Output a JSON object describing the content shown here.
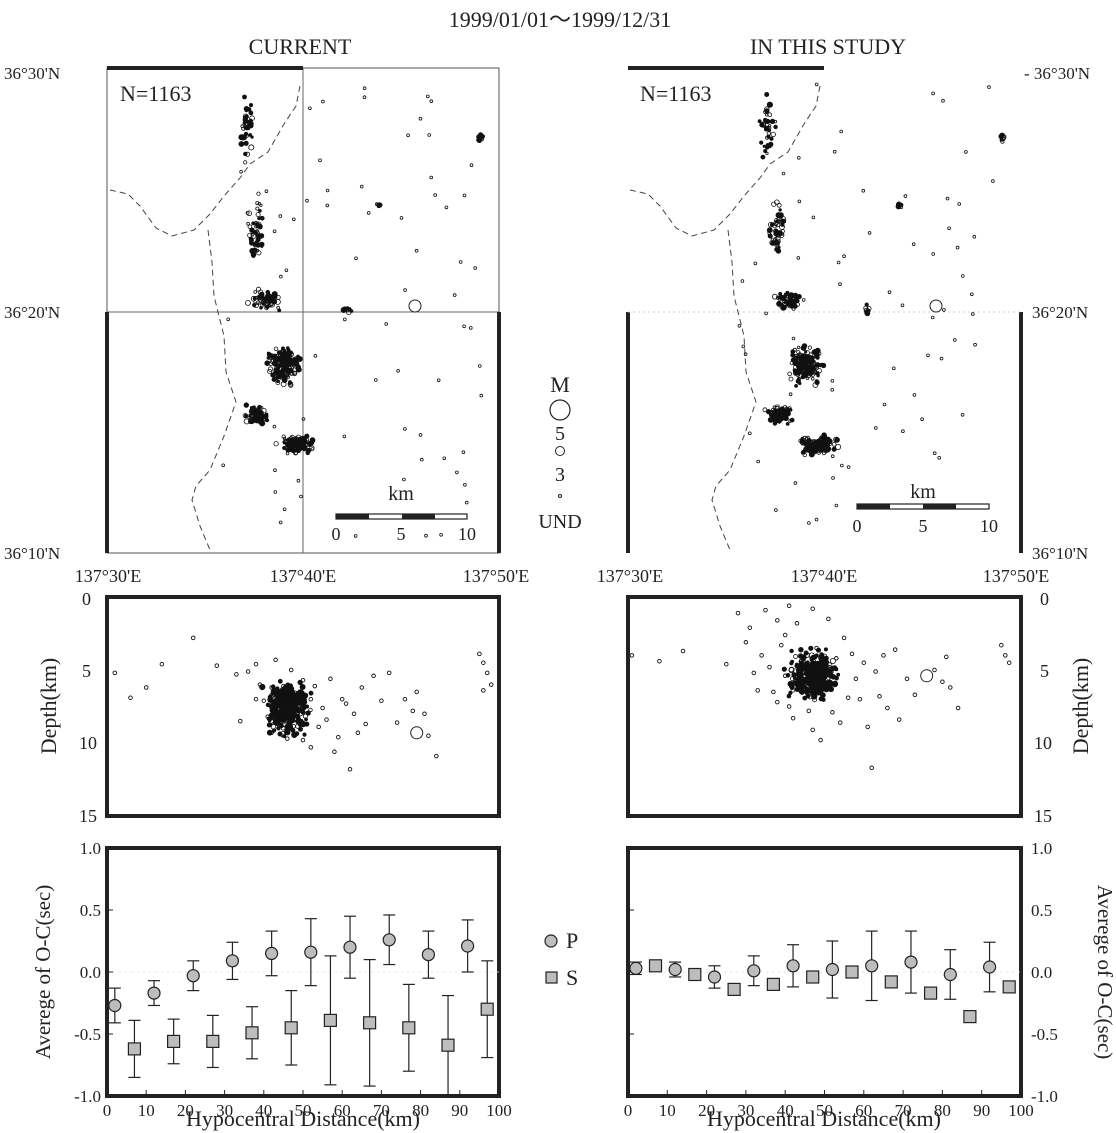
{
  "header": {
    "date_range": "1999/01/01～1999/12/31",
    "left_title": "CURRENT",
    "right_title": "IN THIS STUDY"
  },
  "colors": {
    "ink": "#222222",
    "point": "#111111",
    "marker_fill": "#bdbdbd"
  },
  "map": {
    "count_label_left": "N=1163",
    "count_label_right": "N=1163",
    "lat_labels": [
      "36°30'N",
      "36°20'N",
      "36°10'N"
    ],
    "right_lat_labels": [
      "- 36°30'N",
      "36°20'N",
      "36°10'N"
    ],
    "lon_labels": [
      "137°30'E",
      "137°40'E",
      "137°50'E"
    ],
    "scale_title": "km",
    "scale_ticks": [
      "0",
      "5",
      "10"
    ]
  },
  "magnitude_legend": {
    "title": "M",
    "labels": [
      "5",
      "3",
      "UND"
    ]
  },
  "depth": {
    "ylabel": "Depth(km)",
    "ticks": [
      "0",
      "5",
      "10",
      "15"
    ]
  },
  "oc": {
    "ylabel": "Averege of O-C(sec)",
    "xlabel": "Hypocentral Distance(km)",
    "y_ticks": [
      "1.0",
      "0.5",
      "0.0",
      "-0.5",
      "-1.0"
    ],
    "x_ticks": [
      "0",
      "10",
      "20",
      "30",
      "40",
      "50",
      "60",
      "70",
      "80",
      "90",
      "100"
    ],
    "legend_p": "P",
    "legend_s": "S"
  },
  "chart_data": [
    {
      "type": "scatter",
      "panel": "current-depth-section",
      "xlim": [
        0,
        100
      ],
      "ylim": [
        15,
        0
      ],
      "points": [
        [
          2,
          5.2
        ],
        [
          6,
          6.9
        ],
        [
          10,
          6.2
        ],
        [
          14,
          4.6
        ],
        [
          22,
          2.8
        ],
        [
          28,
          4.7
        ],
        [
          33,
          5.3
        ],
        [
          34,
          8.5
        ],
        [
          36,
          5.1
        ],
        [
          38,
          7.0
        ],
        [
          38,
          4.6
        ],
        [
          39,
          6.0
        ],
        [
          40,
          7.1
        ],
        [
          41,
          8.2
        ],
        [
          42,
          9.3
        ],
        [
          42,
          6.2
        ],
        [
          43,
          4.3
        ],
        [
          44,
          8.1
        ],
        [
          45,
          7.5
        ],
        [
          45,
          6.1
        ],
        [
          46,
          9.7
        ],
        [
          47,
          5.0
        ],
        [
          48,
          7.1
        ],
        [
          49,
          8.4
        ],
        [
          50,
          5.7
        ],
        [
          50,
          9.8
        ],
        [
          52,
          7.0
        ],
        [
          52,
          10.3
        ],
        [
          53,
          6.1
        ],
        [
          54,
          8.9
        ],
        [
          55,
          7.6
        ],
        [
          56,
          8.4
        ],
        [
          57,
          5.6
        ],
        [
          58,
          10.6
        ],
        [
          59,
          9.6
        ],
        [
          60,
          7.0
        ],
        [
          61,
          7.3
        ],
        [
          62,
          11.8
        ],
        [
          63,
          8.0
        ],
        [
          64,
          9.3
        ],
        [
          65,
          6.2
        ],
        [
          66,
          8.7
        ],
        [
          68,
          5.4
        ],
        [
          70,
          7.1
        ],
        [
          72,
          5.2
        ],
        [
          74,
          8.6
        ],
        [
          76,
          7.0
        ],
        [
          78,
          7.8
        ],
        [
          79,
          6.5
        ],
        [
          81,
          8.0
        ],
        [
          82,
          9.5
        ],
        [
          84,
          10.9
        ],
        [
          95,
          3.9
        ],
        [
          96,
          4.5
        ],
        [
          97,
          5.2
        ],
        [
          98,
          6.0
        ],
        [
          96,
          6.4
        ]
      ],
      "cluster": {
        "center": [
          46,
          7.6
        ],
        "radius": [
          7,
          2.3
        ]
      },
      "large_event": [
        79,
        9.3
      ]
    },
    {
      "type": "scatter",
      "panel": "study-depth-section",
      "xlim": [
        0,
        100
      ],
      "ylim": [
        15,
        0
      ],
      "points": [
        [
          1,
          4.0
        ],
        [
          8,
          4.4
        ],
        [
          14,
          3.7
        ],
        [
          25,
          4.6
        ],
        [
          28,
          1.1
        ],
        [
          30,
          3.1
        ],
        [
          31,
          2.1
        ],
        [
          32,
          5.2
        ],
        [
          33,
          6.4
        ],
        [
          34,
          4.0
        ],
        [
          35,
          0.9
        ],
        [
          36,
          4.8
        ],
        [
          37,
          6.5
        ],
        [
          38,
          1.6
        ],
        [
          38,
          7.2
        ],
        [
          39,
          3.3
        ],
        [
          40,
          2.6
        ],
        [
          40,
          5.4
        ],
        [
          41,
          0.6
        ],
        [
          41,
          7.5
        ],
        [
          42,
          8.3
        ],
        [
          43,
          1.8
        ],
        [
          44,
          4.4
        ],
        [
          45,
          6.3
        ],
        [
          46,
          7.8
        ],
        [
          47,
          0.8
        ],
        [
          47,
          9.1
        ],
        [
          48,
          3.5
        ],
        [
          49,
          9.8
        ],
        [
          50,
          5.1
        ],
        [
          51,
          1.5
        ],
        [
          52,
          7.9
        ],
        [
          53,
          4.2
        ],
        [
          54,
          8.6
        ],
        [
          55,
          2.8
        ],
        [
          56,
          6.9
        ],
        [
          57,
          3.9
        ],
        [
          58,
          5.6
        ],
        [
          59,
          7.0
        ],
        [
          60,
          4.5
        ],
        [
          61,
          8.9
        ],
        [
          62,
          11.7
        ],
        [
          63,
          5.1
        ],
        [
          64,
          6.8
        ],
        [
          65,
          4.0
        ],
        [
          66,
          7.6
        ],
        [
          68,
          3.6
        ],
        [
          69,
          8.4
        ],
        [
          71,
          5.6
        ],
        [
          73,
          6.7
        ],
        [
          78,
          5.0
        ],
        [
          80,
          5.8
        ],
        [
          81,
          4.1
        ],
        [
          82,
          6.2
        ],
        [
          84,
          7.6
        ],
        [
          95,
          3.3
        ],
        [
          96,
          4.0
        ],
        [
          97,
          4.5
        ]
      ],
      "cluster": {
        "center": [
          47,
          5.4
        ],
        "radius": [
          8,
          2.2
        ]
      },
      "large_event": [
        76,
        5.4
      ]
    },
    {
      "type": "scatter",
      "panel": "current-oc",
      "xlim": [
        0,
        100
      ],
      "ylim": [
        -1.0,
        1.0
      ],
      "series": [
        {
          "name": "P",
          "x": [
            2,
            12,
            22,
            32,
            42,
            52,
            62,
            72,
            82,
            92
          ],
          "y": [
            -0.27,
            -0.17,
            -0.03,
            0.09,
            0.15,
            0.16,
            0.2,
            0.26,
            0.14,
            0.21
          ],
          "err": [
            0.14,
            0.1,
            0.12,
            0.15,
            0.18,
            0.27,
            0.25,
            0.2,
            0.19,
            0.21
          ]
        },
        {
          "name": "S",
          "x": [
            7,
            17,
            27,
            37,
            47,
            57,
            67,
            77,
            87,
            97
          ],
          "y": [
            -0.62,
            -0.56,
            -0.56,
            -0.49,
            -0.45,
            -0.39,
            -0.41,
            -0.45,
            -0.59,
            -0.3
          ],
          "err": [
            0.23,
            0.18,
            0.21,
            0.21,
            0.3,
            0.52,
            0.51,
            0.35,
            0.4,
            0.39
          ]
        }
      ]
    },
    {
      "type": "scatter",
      "panel": "study-oc",
      "xlim": [
        0,
        100
      ],
      "ylim": [
        -1.0,
        1.0
      ],
      "series": [
        {
          "name": "P",
          "x": [
            2,
            12,
            22,
            32,
            42,
            52,
            62,
            72,
            82,
            92
          ],
          "y": [
            0.03,
            0.02,
            -0.04,
            0.01,
            0.05,
            0.02,
            0.05,
            0.08,
            -0.02,
            0.04
          ],
          "err": [
            0.05,
            0.06,
            0.09,
            0.12,
            0.17,
            0.23,
            0.28,
            0.25,
            0.2,
            0.2
          ]
        },
        {
          "name": "S",
          "x": [
            7,
            17,
            27,
            37,
            47,
            57,
            67,
            77,
            87,
            97
          ],
          "y": [
            0.05,
            -0.02,
            -0.14,
            -0.1,
            -0.04,
            0.0,
            -0.08,
            -0.17,
            -0.36,
            -0.12
          ]
        }
      ]
    }
  ]
}
